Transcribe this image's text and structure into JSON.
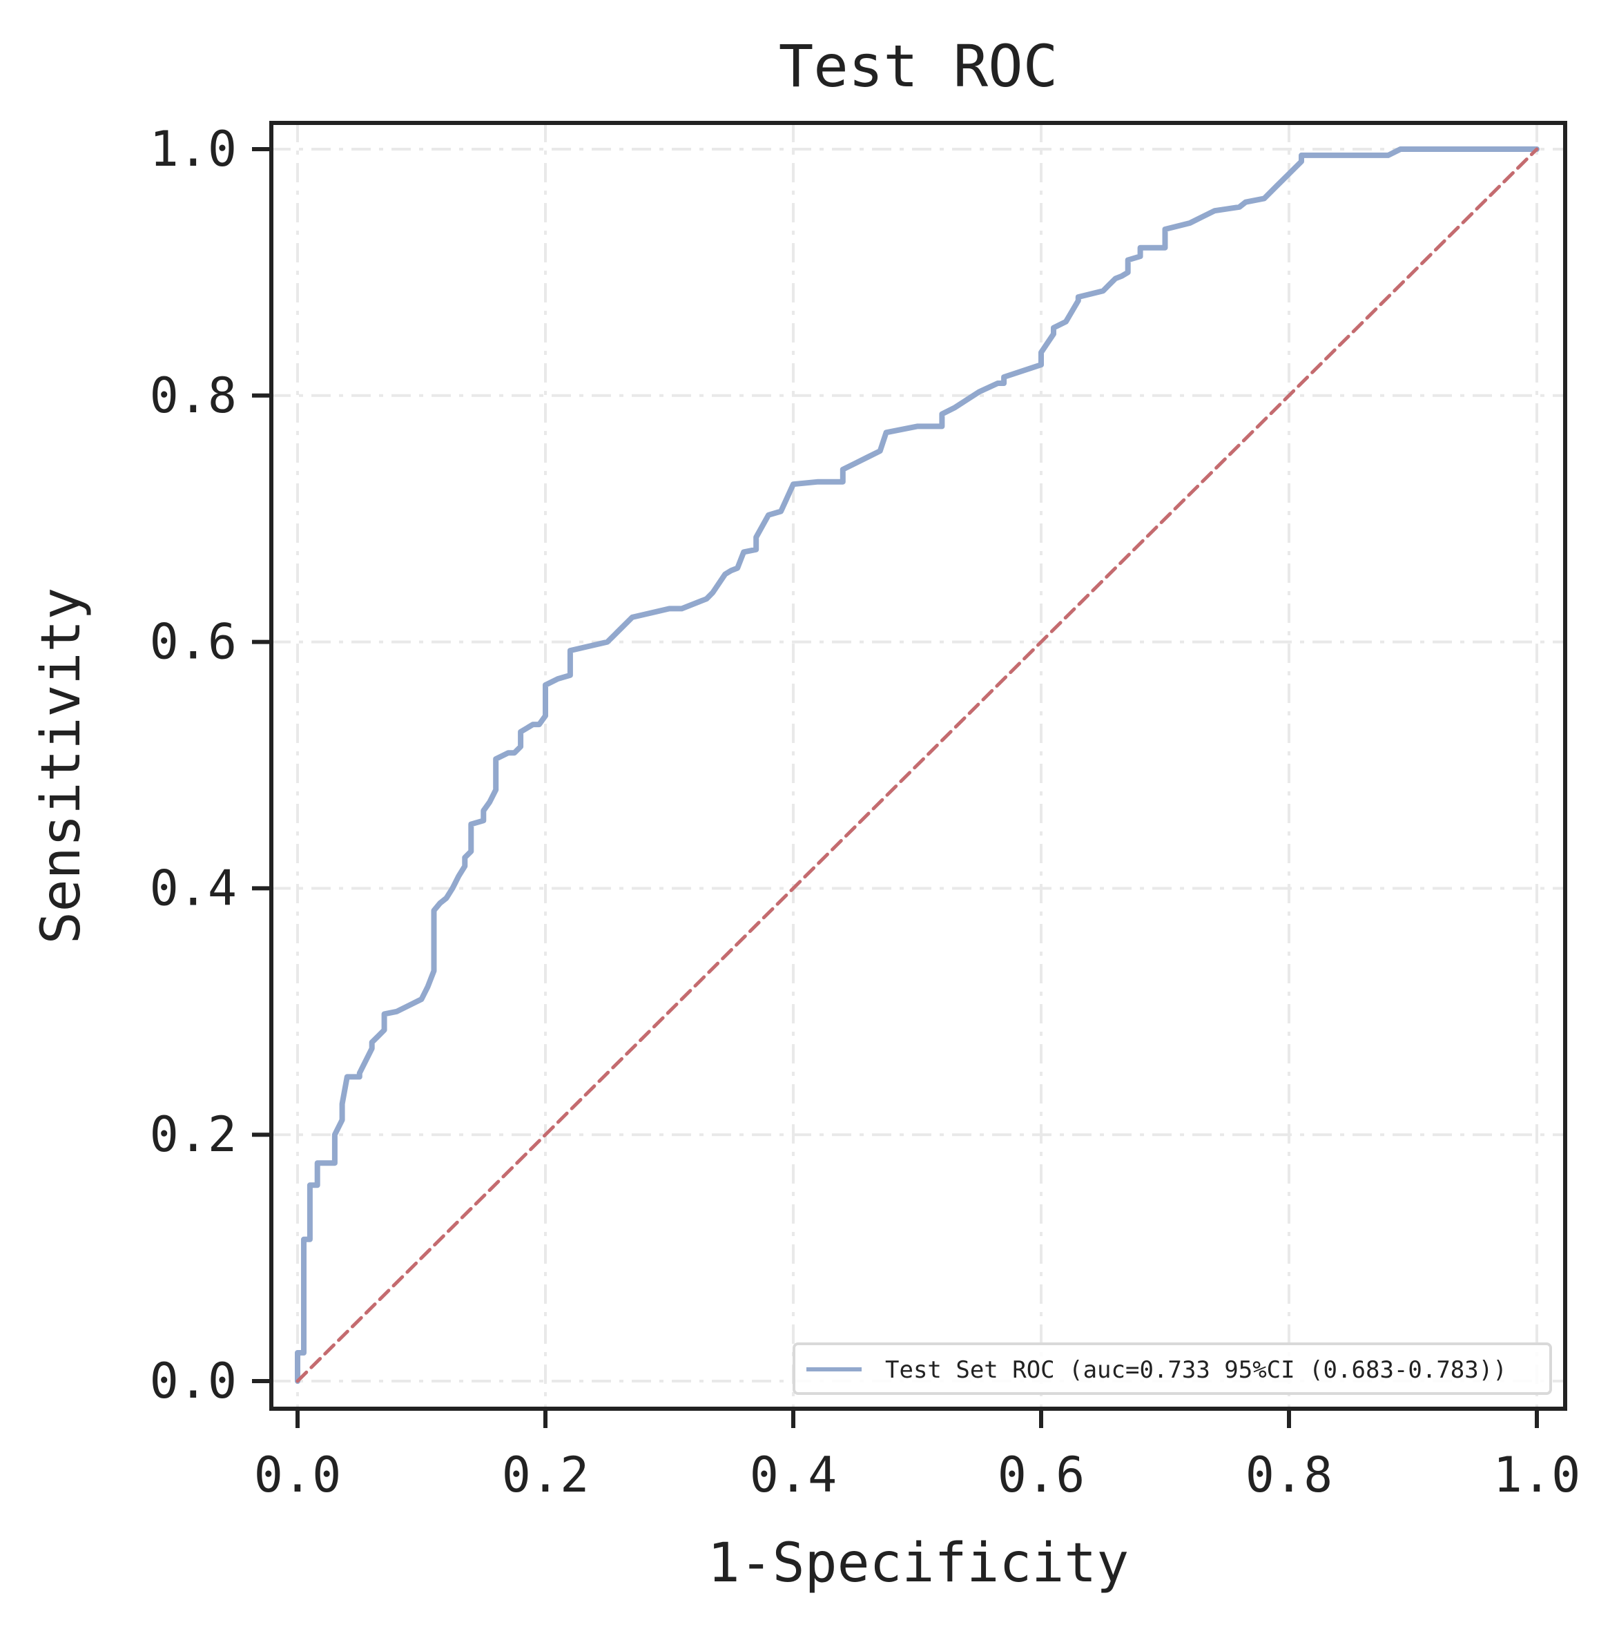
{
  "chart_data": {
    "type": "line",
    "title": "Test ROC",
    "xlabel": "1-Specificity",
    "ylabel": "Sensitivity",
    "xlim": [
      0,
      1
    ],
    "ylim": [
      0,
      1
    ],
    "xticks": [
      "0.0",
      "0.2",
      "0.4",
      "0.6",
      "0.8",
      "1.0"
    ],
    "yticks": [
      "0.0",
      "0.2",
      "0.4",
      "0.6",
      "0.8",
      "1.0"
    ],
    "grid": true,
    "legend_position": "lower-right",
    "series": [
      {
        "name": "Test Set ROC (auc=0.733 95%CI (0.683-0.783))",
        "color": "#92a8cd",
        "x": [
          0.0,
          0.0,
          0.005,
          0.005,
          0.01,
          0.01,
          0.016,
          0.016,
          0.03,
          0.03,
          0.036,
          0.036,
          0.04,
          0.045,
          0.05,
          0.05,
          0.06,
          0.06,
          0.065,
          0.07,
          0.07,
          0.08,
          0.09,
          0.1,
          0.105,
          0.11,
          0.11,
          0.115,
          0.12,
          0.125,
          0.13,
          0.135,
          0.135,
          0.14,
          0.14,
          0.15,
          0.15,
          0.155,
          0.16,
          0.16,
          0.17,
          0.175,
          0.175,
          0.18,
          0.18,
          0.19,
          0.195,
          0.2,
          0.2,
          0.21,
          0.21,
          0.22,
          0.22,
          0.25,
          0.27,
          0.3,
          0.31,
          0.33,
          0.335,
          0.345,
          0.35,
          0.355,
          0.36,
          0.37,
          0.37,
          0.38,
          0.39,
          0.4,
          0.42,
          0.44,
          0.44,
          0.45,
          0.46,
          0.47,
          0.475,
          0.5,
          0.52,
          0.52,
          0.53,
          0.55,
          0.565,
          0.57,
          0.57,
          0.6,
          0.6,
          0.61,
          0.61,
          0.62,
          0.63,
          0.63,
          0.65,
          0.655,
          0.66,
          0.665,
          0.67,
          0.67,
          0.68,
          0.68,
          0.69,
          0.7,
          0.7,
          0.72,
          0.73,
          0.74,
          0.76,
          0.765,
          0.78,
          0.79,
          0.795,
          0.8,
          0.81,
          0.81,
          0.85,
          0.88,
          0.89,
          0.9,
          0.95,
          1.0
        ],
        "y": [
          0.0,
          0.023,
          0.023,
          0.115,
          0.115,
          0.159,
          0.159,
          0.177,
          0.177,
          0.2,
          0.212,
          0.225,
          0.247,
          0.247,
          0.247,
          0.25,
          0.27,
          0.275,
          0.28,
          0.285,
          0.298,
          0.3,
          0.305,
          0.31,
          0.32,
          0.333,
          0.382,
          0.388,
          0.392,
          0.4,
          0.41,
          0.418,
          0.425,
          0.43,
          0.452,
          0.455,
          0.463,
          0.47,
          0.48,
          0.505,
          0.51,
          0.51,
          0.51,
          0.515,
          0.527,
          0.533,
          0.533,
          0.54,
          0.565,
          0.57,
          0.57,
          0.573,
          0.593,
          0.6,
          0.62,
          0.627,
          0.627,
          0.635,
          0.64,
          0.655,
          0.658,
          0.66,
          0.673,
          0.675,
          0.685,
          0.703,
          0.706,
          0.728,
          0.73,
          0.73,
          0.74,
          0.745,
          0.75,
          0.755,
          0.77,
          0.775,
          0.775,
          0.785,
          0.79,
          0.803,
          0.81,
          0.81,
          0.815,
          0.825,
          0.835,
          0.85,
          0.855,
          0.86,
          0.877,
          0.88,
          0.885,
          0.89,
          0.895,
          0.897,
          0.9,
          0.91,
          0.913,
          0.92,
          0.92,
          0.92,
          0.935,
          0.94,
          0.945,
          0.95,
          0.953,
          0.957,
          0.96,
          0.97,
          0.975,
          0.98,
          0.99,
          0.995,
          0.995,
          0.995,
          1.0,
          1.0,
          1.0,
          1.0
        ]
      },
      {
        "color": "#c46b6f",
        "dashed": true,
        "x": [
          0,
          1
        ],
        "y": [
          0,
          1
        ]
      }
    ]
  }
}
